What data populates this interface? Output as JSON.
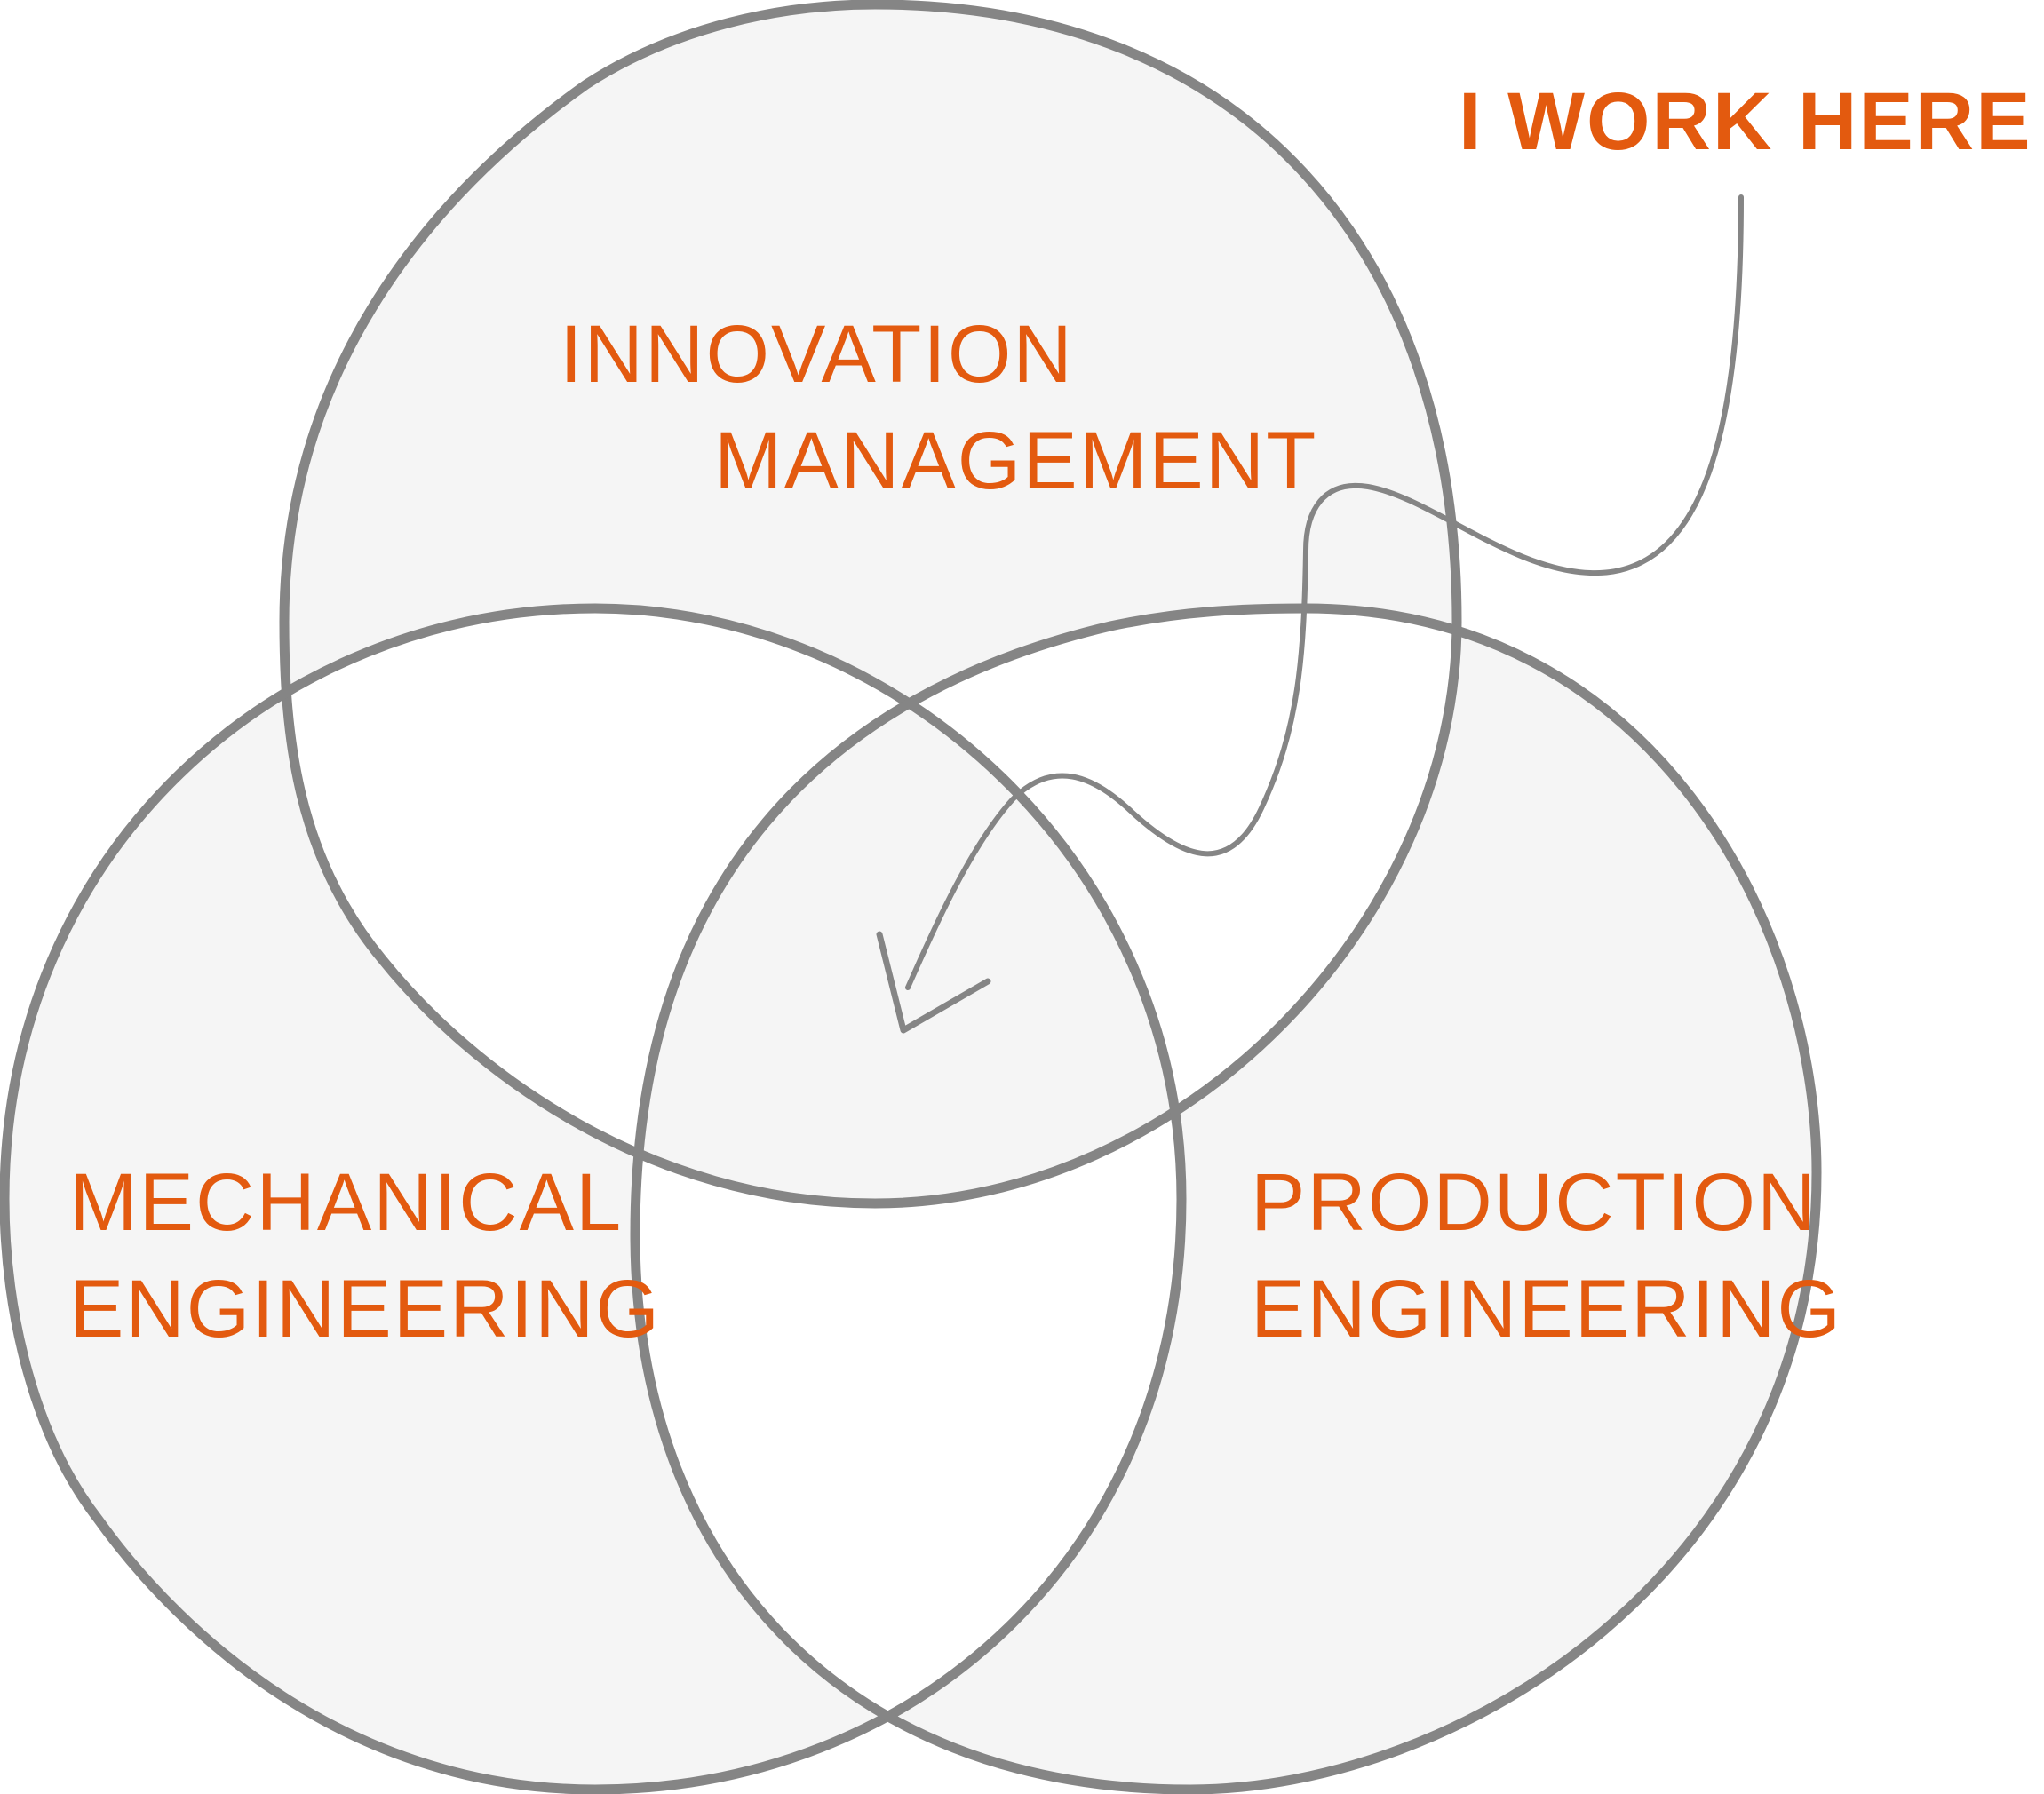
{
  "colors": {
    "accent": "#E35A0F",
    "outline": "#858585",
    "fill": "#F5F5F5",
    "background": "#FFFFFF"
  },
  "callout": {
    "text": "I WORK HERE"
  },
  "sets": {
    "innovation": {
      "line1": "INNOVATION",
      "line2": "MANAGEMENT"
    },
    "mechanical": {
      "line1": "MECHANICAL",
      "line2": "ENGINEERING"
    },
    "production": {
      "line1": "PRODUCTION",
      "line2": "ENGINEERING"
    }
  }
}
